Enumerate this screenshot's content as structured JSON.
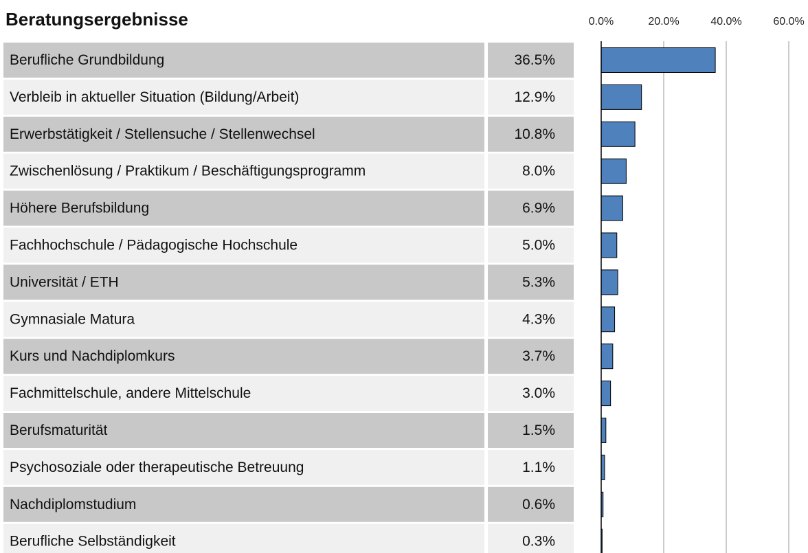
{
  "chart_data": {
    "type": "bar",
    "orientation": "horizontal",
    "title": "Beratungsergebnisse",
    "categories": [
      "Berufliche Grundbildung",
      "Verbleib in aktueller Situation (Bildung/Arbeit)",
      "Erwerbstätigkeit / Stellensuche / Stellenwechsel",
      "Zwischenlösung / Praktikum / Beschäftigungsprogramm",
      "Höhere Berufsbildung",
      "Fachhochschule / Pädagogische Hochschule",
      "Universität / ETH",
      "Gymnasiale Matura",
      "Kurs und Nachdiplomkurs",
      "Fachmittelschule, andere Mittelschule",
      "Berufsmaturität",
      "Psychosoziale oder therapeutische Betreuung",
      "Nachdiplomstudium",
      "Berufliche Selbständigkeit"
    ],
    "values": [
      36.5,
      12.9,
      10.8,
      8.0,
      6.9,
      5.0,
      5.3,
      4.3,
      3.7,
      3.0,
      1.5,
      1.1,
      0.6,
      0.3
    ],
    "value_labels": [
      "36.5%",
      "12.9%",
      "10.8%",
      "8.0%",
      "6.9%",
      "5.0%",
      "5.3%",
      "4.3%",
      "3.7%",
      "3.0%",
      "1.5%",
      "1.1%",
      "0.6%",
      "0.3%"
    ],
    "color": "#4f81bd",
    "xlim": [
      0,
      60
    ],
    "xticks": [
      {
        "value": 0,
        "label": "0.0%"
      },
      {
        "value": 20,
        "label": "20.0%"
      },
      {
        "value": 40,
        "label": "40.0%"
      },
      {
        "value": 60,
        "label": "60.0%"
      }
    ],
    "grid": true
  }
}
